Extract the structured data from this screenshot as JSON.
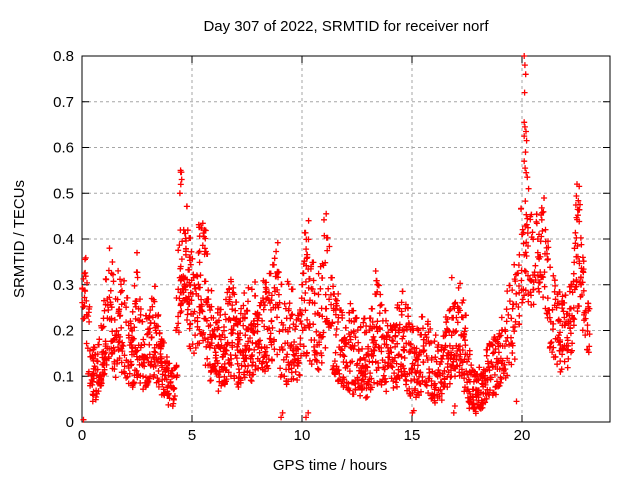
{
  "chart_data": {
    "type": "scatter",
    "title": "Day 307 of 2022, SRMTID for receiver norf",
    "xlabel": "GPS time / hours",
    "ylabel": "SRMTID / TECUs",
    "xlim": [
      0,
      24
    ],
    "ylim": [
      0,
      0.8
    ],
    "xticks": [
      [
        0,
        "0"
      ],
      [
        5,
        "5"
      ],
      [
        10,
        "10"
      ],
      [
        15,
        "15"
      ],
      [
        20,
        "20"
      ]
    ],
    "yticks": [
      [
        0,
        "0"
      ],
      [
        0.1,
        "0.1"
      ],
      [
        0.2,
        "0.2"
      ],
      [
        0.3,
        "0.3"
      ],
      [
        0.4,
        "0.4"
      ],
      [
        0.5,
        "0.5"
      ],
      [
        0.6,
        "0.6"
      ],
      [
        0.7,
        "0.7"
      ],
      [
        0.8,
        "0.8"
      ]
    ],
    "grid": true,
    "legend": "none",
    "marker": "+",
    "marker_color": "#ff0000",
    "marker_size_px": 7,
    "grid_color": "#a6a6a6",
    "axis_color": "#000000",
    "text_color": "#000000",
    "data_span_hours": [
      0,
      23.1
    ],
    "n_points_approx": 2300,
    "envelope_format": [
      "hour",
      "min_TECU",
      "max_TECU",
      "density_1to3"
    ],
    "envelope": [
      [
        0.0,
        0.24,
        0.34,
        2
      ],
      [
        0.15,
        0.2,
        0.37,
        2
      ],
      [
        0.3,
        0.08,
        0.3,
        2
      ],
      [
        0.5,
        0.04,
        0.16,
        3
      ],
      [
        0.7,
        0.05,
        0.18,
        3
      ],
      [
        0.9,
        0.08,
        0.24,
        3
      ],
      [
        1.1,
        0.12,
        0.32,
        3
      ],
      [
        1.3,
        0.14,
        0.37,
        3
      ],
      [
        1.5,
        0.1,
        0.33,
        3
      ],
      [
        1.8,
        0.1,
        0.34,
        3
      ],
      [
        2.0,
        0.09,
        0.3,
        3
      ],
      [
        2.3,
        0.08,
        0.25,
        3
      ],
      [
        2.5,
        0.1,
        0.35,
        3
      ],
      [
        2.8,
        0.07,
        0.23,
        3
      ],
      [
        3.1,
        0.09,
        0.28,
        3
      ],
      [
        3.3,
        0.1,
        0.31,
        3
      ],
      [
        3.6,
        0.06,
        0.2,
        3
      ],
      [
        3.9,
        0.04,
        0.14,
        3
      ],
      [
        4.15,
        0.03,
        0.11,
        2
      ],
      [
        4.35,
        0.08,
        0.35,
        2
      ],
      [
        4.5,
        0.24,
        0.55,
        3
      ],
      [
        4.7,
        0.27,
        0.5,
        3
      ],
      [
        4.9,
        0.17,
        0.42,
        3
      ],
      [
        5.1,
        0.14,
        0.34,
        2
      ],
      [
        5.35,
        0.17,
        0.46,
        3
      ],
      [
        5.6,
        0.12,
        0.42,
        3
      ],
      [
        5.9,
        0.09,
        0.3,
        3
      ],
      [
        6.2,
        0.07,
        0.24,
        3
      ],
      [
        6.5,
        0.08,
        0.27,
        3
      ],
      [
        6.8,
        0.1,
        0.32,
        3
      ],
      [
        7.1,
        0.07,
        0.24,
        3
      ],
      [
        7.4,
        0.1,
        0.3,
        3
      ],
      [
        7.7,
        0.08,
        0.29,
        3
      ],
      [
        8.0,
        0.11,
        0.33,
        3
      ],
      [
        8.3,
        0.1,
        0.32,
        3
      ],
      [
        8.6,
        0.12,
        0.34,
        3
      ],
      [
        8.9,
        0.14,
        0.39,
        2
      ],
      [
        9.1,
        0.09,
        0.32,
        2
      ],
      [
        9.35,
        0.08,
        0.34,
        3
      ],
      [
        9.6,
        0.08,
        0.28,
        3
      ],
      [
        9.9,
        0.1,
        0.3,
        3
      ],
      [
        10.15,
        0.14,
        0.42,
        3
      ],
      [
        10.4,
        0.12,
        0.44,
        3
      ],
      [
        10.7,
        0.1,
        0.3,
        3
      ],
      [
        11.0,
        0.14,
        0.45,
        2
      ],
      [
        11.25,
        0.12,
        0.4,
        2
      ],
      [
        11.5,
        0.1,
        0.3,
        3
      ],
      [
        11.8,
        0.08,
        0.26,
        3
      ],
      [
        12.1,
        0.07,
        0.27,
        3
      ],
      [
        12.4,
        0.06,
        0.24,
        3
      ],
      [
        12.7,
        0.05,
        0.22,
        3
      ],
      [
        13.0,
        0.06,
        0.24,
        3
      ],
      [
        13.35,
        0.09,
        0.33,
        3
      ],
      [
        13.7,
        0.07,
        0.26,
        3
      ],
      [
        14.0,
        0.06,
        0.22,
        3
      ],
      [
        14.3,
        0.08,
        0.25,
        3
      ],
      [
        14.6,
        0.09,
        0.3,
        3
      ],
      [
        14.9,
        0.06,
        0.24,
        3
      ],
      [
        15.2,
        0.05,
        0.2,
        3
      ],
      [
        15.5,
        0.07,
        0.26,
        3
      ],
      [
        15.8,
        0.06,
        0.24,
        3
      ],
      [
        16.1,
        0.04,
        0.19,
        3
      ],
      [
        16.4,
        0.05,
        0.2,
        3
      ],
      [
        16.75,
        0.08,
        0.32,
        3
      ],
      [
        17.05,
        0.1,
        0.32,
        3
      ],
      [
        17.3,
        0.08,
        0.3,
        3
      ],
      [
        17.6,
        0.03,
        0.17,
        3
      ],
      [
        17.9,
        0.02,
        0.11,
        3
      ],
      [
        18.2,
        0.03,
        0.14,
        3
      ],
      [
        18.5,
        0.05,
        0.2,
        3
      ],
      [
        18.8,
        0.06,
        0.22,
        3
      ],
      [
        19.1,
        0.08,
        0.25,
        3
      ],
      [
        19.4,
        0.1,
        0.3,
        2
      ],
      [
        19.7,
        0.14,
        0.38,
        2
      ],
      [
        19.95,
        0.24,
        0.47,
        2
      ],
      [
        20.15,
        0.28,
        0.52,
        2
      ],
      [
        20.35,
        0.25,
        0.47,
        2
      ],
      [
        20.6,
        0.26,
        0.46,
        2
      ],
      [
        20.85,
        0.3,
        0.52,
        3
      ],
      [
        21.05,
        0.24,
        0.48,
        2
      ],
      [
        21.3,
        0.14,
        0.38,
        2
      ],
      [
        21.6,
        0.12,
        0.3,
        3
      ],
      [
        21.9,
        0.11,
        0.28,
        3
      ],
      [
        22.2,
        0.12,
        0.32,
        3
      ],
      [
        22.45,
        0.22,
        0.52,
        3
      ],
      [
        22.65,
        0.25,
        0.52,
        3
      ],
      [
        22.85,
        0.15,
        0.32,
        2
      ],
      [
        23.1,
        0.15,
        0.26,
        2
      ]
    ],
    "features_format": [
      "hour",
      "value_TECU"
    ],
    "features": [
      [
        0.07,
        0.005
      ],
      [
        4.45,
        0.5
      ],
      [
        4.48,
        0.55
      ],
      [
        4.53,
        0.53
      ],
      [
        9.05,
        0.01
      ],
      [
        9.12,
        0.02
      ],
      [
        10.18,
        0.01
      ],
      [
        10.28,
        0.02
      ],
      [
        11.1,
        0.455
      ],
      [
        15.02,
        0.02
      ],
      [
        15.08,
        0.025
      ],
      [
        16.9,
        0.02
      ],
      [
        16.95,
        0.035
      ],
      [
        19.75,
        0.045
      ],
      [
        20.1,
        0.8
      ],
      [
        20.13,
        0.78
      ],
      [
        20.17,
        0.76
      ],
      [
        20.12,
        0.72
      ],
      [
        20.1,
        0.655
      ],
      [
        20.13,
        0.645
      ],
      [
        20.18,
        0.635
      ],
      [
        20.1,
        0.625
      ],
      [
        20.21,
        0.615
      ],
      [
        20.16,
        0.59
      ],
      [
        20.1,
        0.57
      ],
      [
        20.14,
        0.555
      ],
      [
        20.19,
        0.545
      ],
      [
        20.24,
        0.535
      ],
      [
        20.3,
        0.51
      ],
      [
        22.5,
        0.52
      ],
      [
        22.6,
        0.515
      ],
      [
        1.25,
        0.38
      ],
      [
        2.5,
        0.37
      ],
      [
        8.9,
        0.392
      ],
      [
        10.3,
        0.44
      ],
      [
        13.35,
        0.33
      ]
    ]
  }
}
